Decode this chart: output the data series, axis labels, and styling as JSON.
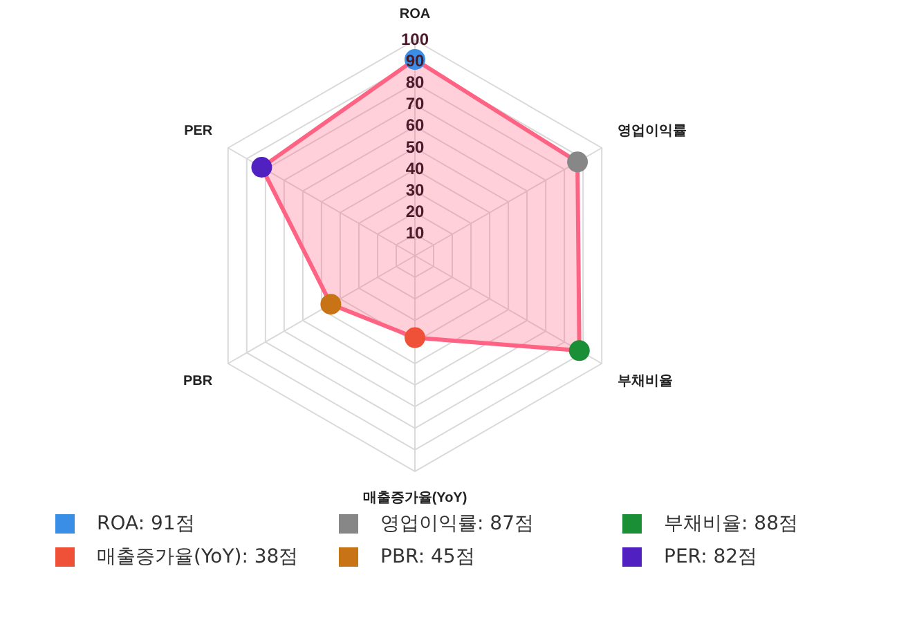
{
  "chart_data": {
    "type": "radar",
    "categories": [
      "ROA",
      "영업이익률",
      "부채비율",
      "매출증가율(YoY)",
      "PBR",
      "PER"
    ],
    "series": [
      {
        "color": "#ff6384",
        "values": [
          91,
          87,
          88,
          38,
          45,
          82
        ],
        "colors": [
          "#3a8ee6",
          "#878787",
          "#1b8f36",
          "#ef5138",
          "#c97317",
          "#5120c0"
        ]
      }
    ],
    "annotations": [
      "ROA: 91점",
      "영업이익률: 87점",
      "부채비율: 88점",
      "매출증가율(YoY): 38점",
      "PBR: 45점",
      "PER: 82점"
    ],
    "ylim": [
      0,
      100
    ],
    "yticks": [
      10,
      20,
      30,
      40,
      50,
      60,
      70,
      80,
      90,
      100
    ],
    "grid": true,
    "marker": "circle"
  }
}
